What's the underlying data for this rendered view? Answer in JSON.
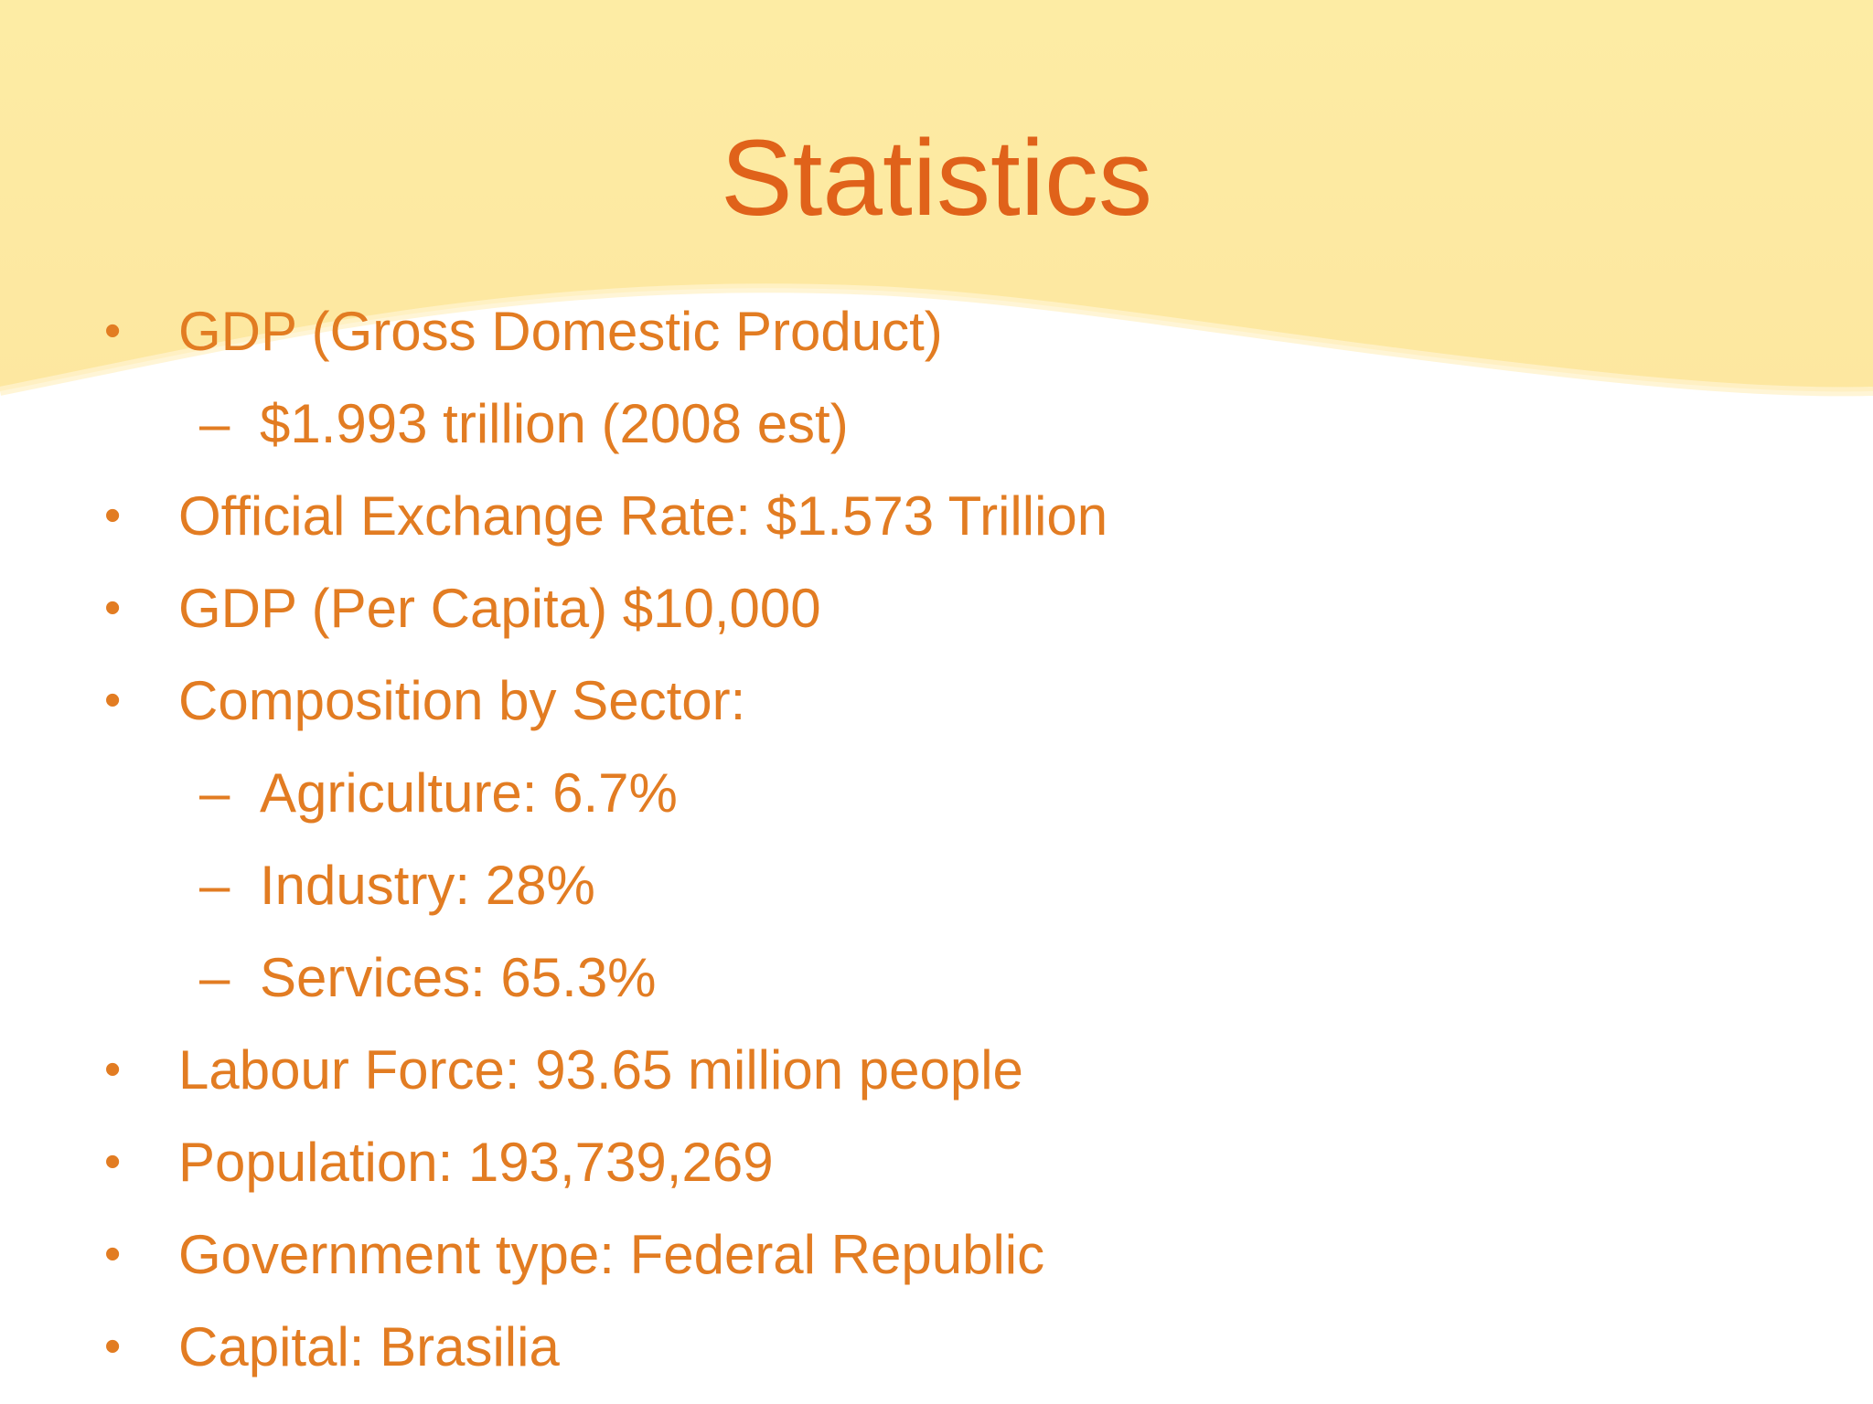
{
  "slide": {
    "title": "Statistics",
    "colors": {
      "title": "#e0621a",
      "text": "#e27c22",
      "banner": "#fdeca4",
      "background": "#ffffff"
    },
    "items": [
      {
        "level": 1,
        "marker": "•",
        "text": "GDP (Gross Domestic Product)"
      },
      {
        "level": 2,
        "marker": "–",
        "text": "$1.993 trillion (2008 est)"
      },
      {
        "level": 1,
        "marker": "•",
        "text": "Official Exchange Rate: $1.573 Trillion"
      },
      {
        "level": 1,
        "marker": "•",
        "text": "GDP (Per Capita) $10,000"
      },
      {
        "level": 1,
        "marker": "•",
        "text": "Composition by Sector:"
      },
      {
        "level": 2,
        "marker": "–",
        "text": "Agriculture: 6.7%"
      },
      {
        "level": 2,
        "marker": "–",
        "text": "Industry: 28%"
      },
      {
        "level": 2,
        "marker": "–",
        "text": "Services: 65.3%"
      },
      {
        "level": 1,
        "marker": "•",
        "text": "Labour Force: 93.65 million people"
      },
      {
        "level": 1,
        "marker": "•",
        "text": "Population: 193,739,269"
      },
      {
        "level": 1,
        "marker": "•",
        "text": "Government type: Federal Republic"
      },
      {
        "level": 1,
        "marker": "•",
        "text": "Capital: Brasilia"
      }
    ]
  }
}
